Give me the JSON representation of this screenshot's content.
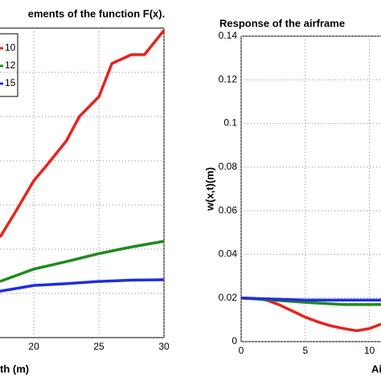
{
  "chart_data": [
    {
      "type": "line",
      "title": "ements  of the function F(x).",
      "x_label": "th (m)",
      "xlim": [
        17.4,
        30
      ],
      "xticks": [
        20,
        25,
        30
      ],
      "ylim": [
        0,
        7
      ],
      "grid": true,
      "series": [
        {
          "name": "10",
          "color": "#e8231e",
          "x": [
            17.4,
            18.5,
            20,
            21,
            22.5,
            23.5,
            25,
            26,
            27.5,
            28.5,
            30
          ],
          "values": [
            2.27,
            2.8,
            3.55,
            3.9,
            4.45,
            5.0,
            5.45,
            6.2,
            6.4,
            6.4,
            6.95
          ]
        },
        {
          "name": "12",
          "color": "#1f8a1f",
          "x": [
            17.4,
            20,
            22.5,
            25,
            27.5,
            30
          ],
          "values": [
            1.27,
            1.55,
            1.72,
            1.9,
            2.05,
            2.18
          ]
        },
        {
          "name": "15",
          "color": "#1f2ee0",
          "x": [
            17.4,
            20,
            22.5,
            25,
            27.5,
            30
          ],
          "values": [
            1.05,
            1.18,
            1.22,
            1.27,
            1.3,
            1.31
          ]
        }
      ]
    },
    {
      "type": "line",
      "title": "Response of the airframe",
      "y_label": "w(x,t)(m)",
      "x_label": "Ai",
      "xlim": [
        0,
        10.9
      ],
      "xticks": [
        0,
        5,
        10
      ],
      "ylim": [
        0,
        0.14
      ],
      "yticks": [
        0,
        0.02,
        0.04,
        0.06,
        0.08,
        0.1,
        0.12,
        0.14
      ],
      "grid": true,
      "series": [
        {
          "name": "10",
          "color": "#e8231e",
          "x": [
            0,
            1,
            2,
            3,
            4,
            5,
            6,
            7,
            8,
            9,
            10,
            10.9
          ],
          "values": [
            0.02,
            0.0198,
            0.019,
            0.0168,
            0.014,
            0.0112,
            0.009,
            0.0072,
            0.006,
            0.005,
            0.006,
            0.008
          ]
        },
        {
          "name": "12",
          "color": "#1f8a1f",
          "x": [
            0,
            2.5,
            5,
            8,
            10.9
          ],
          "values": [
            0.02,
            0.019,
            0.018,
            0.017,
            0.017
          ]
        },
        {
          "name": "15",
          "color": "#1f2ee0",
          "x": [
            0,
            5,
            10.9
          ],
          "values": [
            0.02,
            0.019,
            0.019
          ]
        }
      ]
    }
  ]
}
